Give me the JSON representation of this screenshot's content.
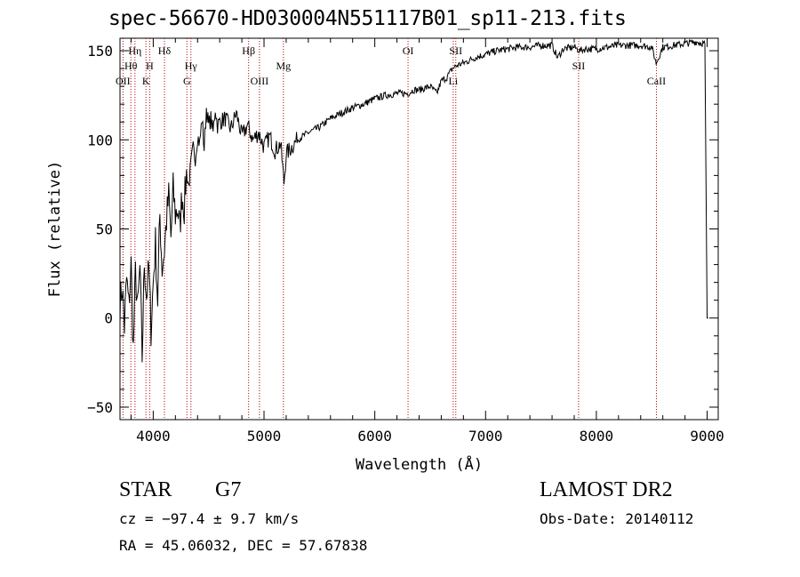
{
  "title": "spec-56670-HD030004N551117B01_sp11-213.fits",
  "object_class": "STAR",
  "subclass": "G7",
  "survey": "LAMOST DR2",
  "redshift_text": "cz = −97.4 ± 9.7 km/s",
  "obs_date_text": "Obs-Date: 20140112",
  "coords_text": "RA =  45.06032, DEC =  57.67838",
  "chart_data": {
    "type": "line",
    "title": "spec-56670-HD030004N551117B01_sp11-213.fits",
    "xlabel": "Wavelength (Å)",
    "ylabel": "Flux (relative)",
    "xlim": [
      3700,
      9100
    ],
    "ylim": [
      -57,
      157
    ],
    "x_ticks": [
      4000,
      5000,
      6000,
      7000,
      8000,
      9000
    ],
    "y_ticks": [
      -50,
      0,
      50,
      100,
      150
    ],
    "grid": false,
    "line_color": "#000000",
    "marker_color": "#b00000",
    "series": [
      {
        "x": [
          3700,
          3720,
          3740,
          3760,
          3780,
          3800,
          3820,
          3840,
          3860,
          3880,
          3900,
          3920,
          3940,
          3960,
          3980,
          4000,
          4020,
          4040,
          4060,
          4080,
          4100,
          4120,
          4140,
          4160,
          4180,
          4200,
          4220,
          4240,
          4260,
          4280,
          4300,
          4320,
          4340,
          4360,
          4380,
          4400,
          4420,
          4440,
          4460,
          4480,
          4500,
          4520,
          4540,
          4560,
          4580,
          4600,
          4650,
          4700,
          4750,
          4800,
          4850,
          4900,
          4950,
          5000,
          5050,
          5100,
          5150,
          5180,
          5200,
          5250,
          5300,
          5400,
          5500,
          5600,
          5700,
          5800,
          5900,
          6000,
          6100,
          6200,
          6300,
          6350,
          6400,
          6500,
          6560,
          6600,
          6650,
          6700,
          6750,
          6800,
          6900,
          7000,
          7100,
          7200,
          7300,
          7400,
          7500,
          7600,
          7650,
          7700,
          7800,
          7850,
          7900,
          8000,
          8100,
          8200,
          8300,
          8400,
          8500,
          8540,
          8600,
          8700,
          8800,
          8900,
          8980,
          9000,
          9010
        ],
        "values": [
          8,
          18,
          -5,
          22,
          6,
          30,
          -18,
          25,
          4,
          28,
          -22,
          32,
          12,
          28,
          -6,
          20,
          42,
          10,
          58,
          28,
          38,
          55,
          68,
          45,
          72,
          58,
          62,
          50,
          70,
          62,
          82,
          74,
          86,
          95,
          90,
          102,
          98,
          112,
          95,
          118,
          108,
          112,
          104,
          118,
          108,
          110,
          112,
          106,
          115,
          102,
          108,
          100,
          104,
          96,
          102,
          94,
          98,
          76,
          92,
          96,
          100,
          104,
          107,
          112,
          115,
          118,
          120,
          123,
          125,
          126,
          126,
          128,
          128,
          130,
          126,
          133,
          135,
          140,
          142,
          143,
          146,
          148,
          150,
          151,
          152,
          152,
          153,
          153,
          146,
          151,
          152,
          150,
          151,
          151,
          152,
          153,
          153,
          153,
          152,
          143,
          152,
          153,
          154,
          155,
          154,
          0,
          0
        ]
      }
    ],
    "line_markers": [
      {
        "label": "OII",
        "x": 3727,
        "row": 3
      },
      {
        "label": "Hθ",
        "x": 3798,
        "row": 2
      },
      {
        "label": "Hη",
        "x": 3835,
        "row": 1
      },
      {
        "label": "K",
        "x": 3934,
        "row": 3
      },
      {
        "label": "H",
        "x": 3968,
        "row": 2
      },
      {
        "label": "Hδ",
        "x": 4101,
        "row": 1
      },
      {
        "label": "G",
        "x": 4304,
        "row": 3
      },
      {
        "label": "Hγ",
        "x": 4340,
        "row": 2
      },
      {
        "label": "Hβ",
        "x": 4861,
        "row": 1
      },
      {
        "label": "OIII",
        "x": 4959,
        "row": 3
      },
      {
        "label": "Mg",
        "x": 5175,
        "row": 2
      },
      {
        "label": "OI",
        "x": 6300,
        "row": 1
      },
      {
        "label": "Li",
        "x": 6708,
        "row": 3
      },
      {
        "label": "SII",
        "x": 6731,
        "row": 1
      },
      {
        "label": "SII",
        "x": 7840,
        "row": 2
      },
      {
        "label": "CaII",
        "x": 8542,
        "row": 3
      }
    ]
  }
}
